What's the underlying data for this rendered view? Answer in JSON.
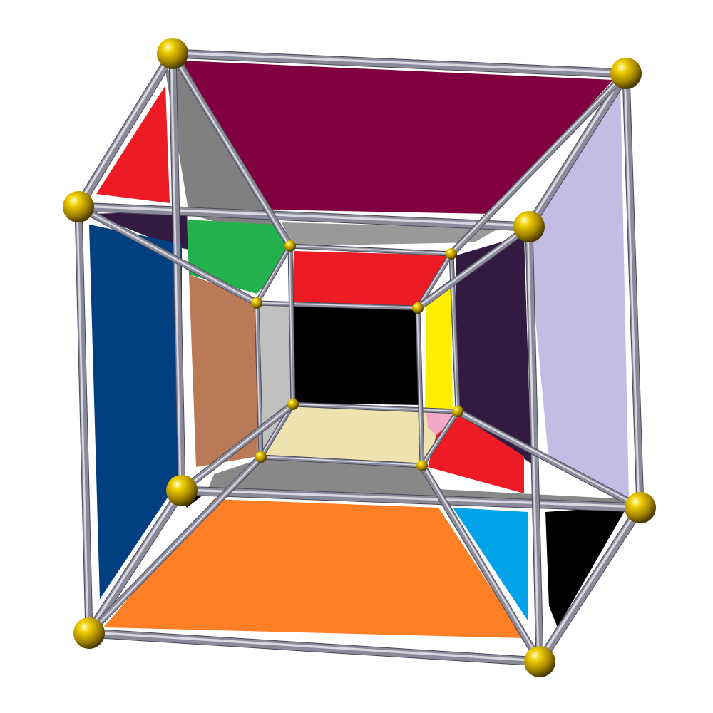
{
  "figure": {
    "background": "#ffffff",
    "rod_color": "#8a8a9a",
    "rod_highlight": "#e6e6ee",
    "vertex_color": "#c9a800",
    "vertex_highlight": "#fff6a0"
  },
  "faces": [
    {
      "name": "face-maroon",
      "color": "#800040"
    },
    {
      "name": "face-gray-top",
      "color": "#808080"
    },
    {
      "name": "face-red-topleft",
      "color": "#ed1c24"
    },
    {
      "name": "face-dark-purple-topleft",
      "color": "#331a40"
    },
    {
      "name": "face-green",
      "color": "#22b14c"
    },
    {
      "name": "face-gray-upper-strip",
      "color": "#999999"
    },
    {
      "name": "face-red-upper",
      "color": "#ed1c24"
    },
    {
      "name": "face-lavender",
      "color": "#c3bde6"
    },
    {
      "name": "face-dark-purple-right",
      "color": "#331a40"
    },
    {
      "name": "face-yellow",
      "color": "#ffee00"
    },
    {
      "name": "face-black-center",
      "color": "#000000"
    },
    {
      "name": "face-light-gray",
      "color": "#c0c0c0"
    },
    {
      "name": "face-brown",
      "color": "#b97a57"
    },
    {
      "name": "face-navy",
      "color": "#003f80"
    },
    {
      "name": "face-cream",
      "color": "#eee3b0"
    },
    {
      "name": "face-pink",
      "color": "#f4a8c8"
    },
    {
      "name": "face-red-lower",
      "color": "#ed1c24"
    },
    {
      "name": "face-gray-lower",
      "color": "#888888"
    },
    {
      "name": "face-orange",
      "color": "#ff7f27"
    },
    {
      "name": "face-sky-blue",
      "color": "#00a2e8"
    },
    {
      "name": "face-black-lower-right",
      "color": "#000000"
    }
  ]
}
